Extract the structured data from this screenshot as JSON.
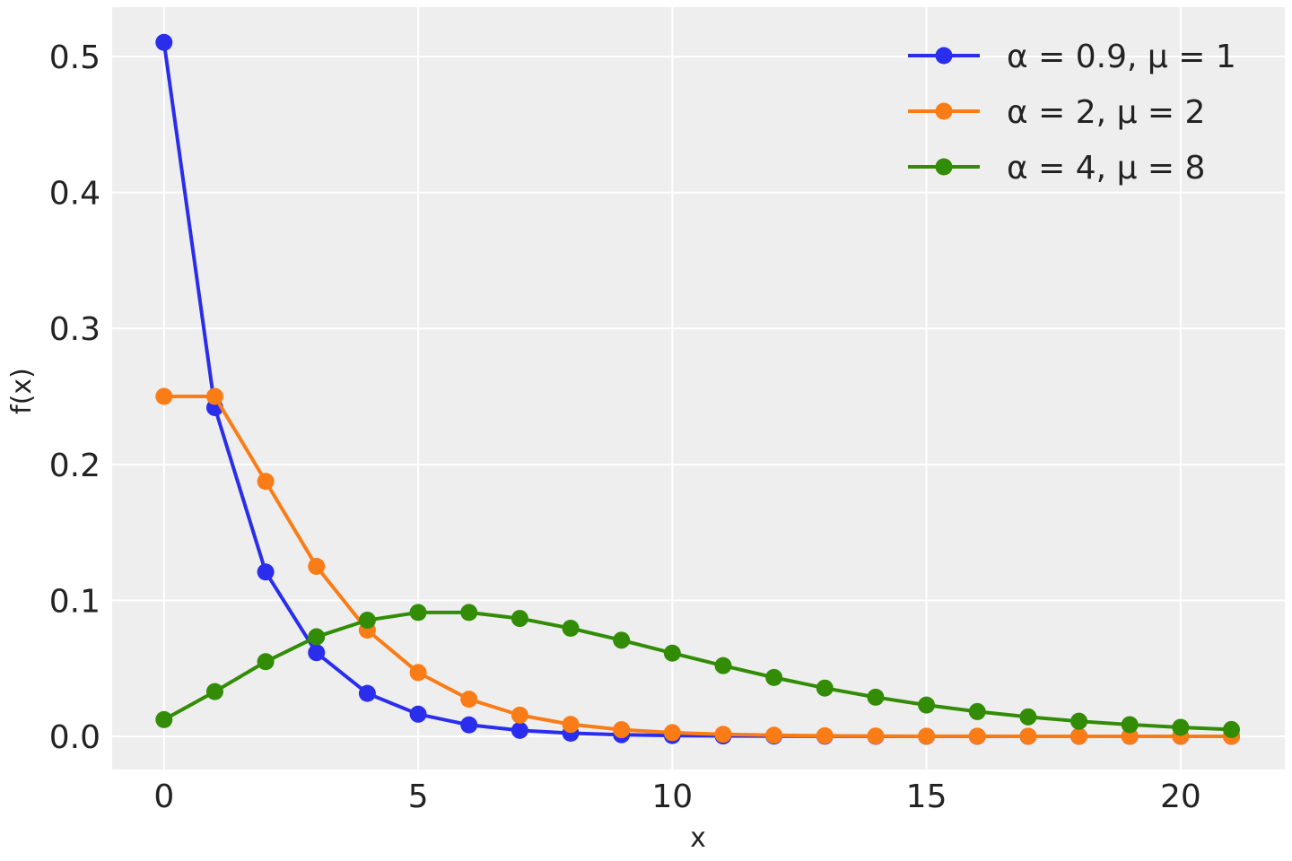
{
  "chart_data": {
    "type": "line",
    "title": "",
    "xlabel": "x",
    "ylabel": "f(x)",
    "xlim": [
      -1.02,
      22.05
    ],
    "ylim": [
      -0.0244,
      0.5363
    ],
    "xticks": [
      0,
      5,
      10,
      15,
      20
    ],
    "yticks": [
      0.0,
      0.1,
      0.2,
      0.3,
      0.4,
      0.5
    ],
    "xtick_labels": [
      "0",
      "5",
      "10",
      "15",
      "20"
    ],
    "ytick_labels": [
      "0.0",
      "0.1",
      "0.2",
      "0.3",
      "0.4",
      "0.5"
    ],
    "grid": true,
    "legend_position": "top-right",
    "background": "#eeeeee",
    "x": [
      0,
      1,
      2,
      3,
      4,
      5,
      6,
      7,
      8,
      9,
      10,
      11,
      12,
      13,
      14,
      15,
      16,
      17,
      18,
      19,
      20,
      21
    ],
    "series": [
      {
        "name": "α = 0.9, μ = 1",
        "color": "#2a2eec",
        "values": [
          0.5104,
          0.2418,
          0.1209,
          0.0615,
          0.0316,
          0.0163,
          0.0084,
          0.0044,
          0.0023,
          0.0012,
          0.0006,
          0.0003,
          0.0002,
          0.0001,
          0.0,
          0.0,
          0.0,
          0.0,
          0.0,
          0.0,
          0.0,
          0.0
        ]
      },
      {
        "name": "α = 2, μ = 2",
        "color": "#fa7c17",
        "values": [
          0.25,
          0.25,
          0.1875,
          0.125,
          0.0781,
          0.0469,
          0.0273,
          0.0156,
          0.0088,
          0.0049,
          0.0027,
          0.0015,
          0.0008,
          0.0004,
          0.0002,
          0.0001,
          0.0001,
          0.0,
          0.0,
          0.0,
          0.0,
          0.0
        ]
      },
      {
        "name": "α = 4, μ = 8",
        "color": "#328c06",
        "values": [
          0.0123,
          0.0329,
          0.0549,
          0.0732,
          0.0854,
          0.0911,
          0.0911,
          0.0867,
          0.0795,
          0.0707,
          0.0612,
          0.052,
          0.0433,
          0.0355,
          0.0288,
          0.023,
          0.0182,
          0.0143,
          0.0111,
          0.0086,
          0.0066,
          0.005
        ]
      }
    ]
  }
}
